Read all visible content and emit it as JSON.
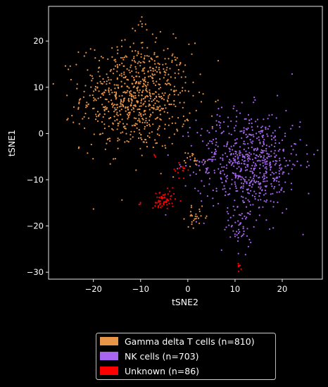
{
  "chart_data": {
    "type": "scatter",
    "xlabel": "tSNE2",
    "ylabel": "tSNE1",
    "xlim": [
      -29.5,
      28.5
    ],
    "ylim": [
      -31.5,
      27.5
    ],
    "xticks": [
      -20,
      -10,
      0,
      10,
      20
    ],
    "yticks": [
      -30,
      -20,
      -10,
      0,
      10,
      20
    ],
    "xtick_labels": [
      "−20",
      "−10",
      "0",
      "10",
      "20"
    ],
    "ytick_labels": [
      "−30",
      "−20",
      "−10",
      "0",
      "10",
      "20"
    ],
    "grid": false,
    "background": "#000000",
    "legend_position": "below",
    "series": [
      {
        "name": "Gamma delta T cells (n=810)",
        "color": "#e8954a",
        "count": 810,
        "clusters": [
          {
            "center": [
              -11,
              8
            ],
            "spread": [
              5.8,
              5.8
            ],
            "count": 760
          },
          {
            "center": [
              2,
              -18
            ],
            "spread": [
              1.2,
              1.0
            ],
            "count": 25
          },
          {
            "center": [
              -10.5,
              23
            ],
            "spread": [
              0.8,
              0.9
            ],
            "count": 8
          },
          {
            "center": [
              1,
              -6
            ],
            "spread": [
              1.2,
              1.2
            ],
            "count": 17
          }
        ]
      },
      {
        "name": "NK cells (n=703)",
        "color": "#a765f0",
        "count": 703,
        "clusters": [
          {
            "center": [
              13,
              -6
            ],
            "spread": [
              5.5,
              5.5
            ],
            "count": 660
          },
          {
            "center": [
              11,
              -21
            ],
            "spread": [
              1.3,
              2.3
            ],
            "count": 43
          }
        ]
      },
      {
        "name": "Unknown (n=86)",
        "color": "#ff0000",
        "count": 86,
        "clusters": [
          {
            "center": [
              -5,
              -14.5
            ],
            "spread": [
              1.2,
              1.1
            ],
            "count": 58
          },
          {
            "center": [
              -1.5,
              -8
            ],
            "spread": [
              0.8,
              1.2
            ],
            "count": 14
          },
          {
            "center": [
              11,
              -28.5
            ],
            "spread": [
              0.2,
              0.5
            ],
            "count": 8
          },
          {
            "center": [
              -10,
              -15
            ],
            "spread": [
              0.3,
              0.2
            ],
            "count": 3
          },
          {
            "center": [
              -7,
              -5
            ],
            "spread": [
              0.3,
              0.3
            ],
            "count": 3
          }
        ]
      }
    ]
  }
}
